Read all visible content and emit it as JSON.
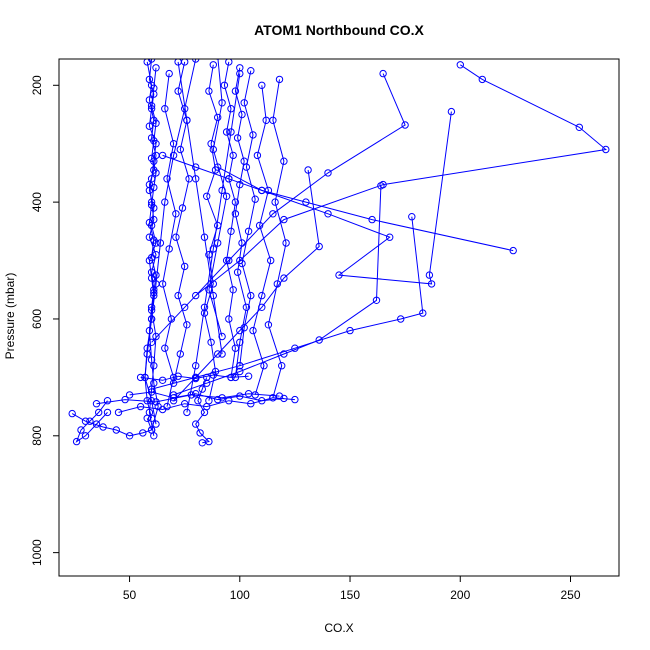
{
  "chart_data": {
    "type": "line",
    "title": "ATOM1 Northbound CO.X",
    "xlabel": "CO.X",
    "ylabel": "Pressure (mbar)",
    "xlim": [
      18,
      272
    ],
    "ylim": [
      1040,
      155
    ],
    "y_reversed": true,
    "x_ticks": [
      50,
      100,
      150,
      200,
      250
    ],
    "y_ticks": [
      200,
      400,
      600,
      800,
      1000
    ],
    "line_color": "#0000ff",
    "marker": "open-circle",
    "grid": false,
    "series": [
      {
        "x": [
          60,
          59,
          61,
          60,
          59,
          62,
          61,
          60,
          59,
          61,
          60,
          62,
          59,
          60,
          61,
          60,
          58,
          57,
          60,
          62
        ],
        "y": [
          155,
          190,
          215,
          240,
          270,
          300,
          330,
          360,
          380,
          410,
          440,
          470,
          500,
          530,
          560,
          600,
          650,
          700,
          740,
          780
        ]
      },
      {
        "x": [
          58,
          60,
          59,
          61,
          60,
          62,
          61,
          59,
          60,
          61,
          59,
          62,
          60,
          61,
          60,
          59,
          60,
          61,
          63,
          60
        ],
        "y": [
          160,
          200,
          225,
          260,
          290,
          320,
          345,
          370,
          400,
          430,
          460,
          490,
          520,
          550,
          580,
          620,
          670,
          710,
          750,
          790
        ]
      },
      {
        "x": [
          62,
          61,
          60,
          62,
          61,
          60,
          62,
          61,
          60,
          59,
          61,
          60,
          62,
          61,
          60,
          62,
          61,
          60,
          59,
          61
        ],
        "y": [
          170,
          205,
          235,
          265,
          295,
          325,
          350,
          375,
          405,
          435,
          465,
          495,
          525,
          555,
          585,
          630,
          680,
          720,
          760,
          800
        ]
      },
      {
        "x": [
          80,
          75,
          70,
          66,
          64,
          62,
          60,
          58,
          57,
          58,
          60
        ],
        "y": [
          155,
          240,
          320,
          400,
          470,
          540,
          600,
          660,
          700,
          740,
          770
        ]
      },
      {
        "x": [
          95,
          93,
          96,
          94,
          97,
          95,
          98,
          96,
          94,
          97,
          95,
          98,
          96
        ],
        "y": [
          160,
          200,
          240,
          280,
          320,
          360,
          400,
          450,
          500,
          550,
          600,
          650,
          700
        ]
      },
      {
        "x": [
          100,
          98,
          101,
          99,
          102,
          100,
          98,
          101,
          99,
          103,
          100,
          98
        ],
        "y": [
          170,
          210,
          250,
          290,
          330,
          370,
          420,
          470,
          520,
          580,
          640,
          700
        ]
      },
      {
        "x": [
          88,
          86,
          90,
          87,
          89,
          85,
          90,
          86,
          88,
          84,
          87,
          89,
          86
        ],
        "y": [
          165,
          210,
          255,
          300,
          345,
          390,
          440,
          490,
          540,
          590,
          640,
          690,
          740
        ]
      },
      {
        "x": [
          75,
          72,
          76,
          73,
          77,
          74,
          71,
          75,
          72,
          76,
          73,
          70
        ],
        "y": [
          160,
          210,
          260,
          310,
          360,
          410,
          460,
          510,
          560,
          610,
          660,
          710
        ]
      },
      {
        "x": [
          105,
          102,
          106,
          103,
          107,
          104,
          101,
          105,
          102,
          100
        ],
        "y": [
          175,
          230,
          285,
          340,
          395,
          450,
          505,
          560,
          615,
          680
        ]
      },
      {
        "x": [
          68,
          66,
          70,
          67,
          71,
          68,
          65,
          69,
          66,
          70,
          67
        ],
        "y": [
          180,
          240,
          300,
          360,
          420,
          480,
          540,
          600,
          650,
          700,
          750
        ]
      },
      {
        "x": [
          110,
          112,
          108,
          113,
          109,
          114,
          110,
          106,
          111,
          107
        ],
        "y": [
          200,
          260,
          320,
          380,
          440,
          500,
          560,
          620,
          680,
          730
        ]
      },
      {
        "x": [
          118,
          115,
          120,
          116,
          121,
          117,
          113,
          119,
          115
        ],
        "y": [
          190,
          260,
          330,
          400,
          470,
          540,
          610,
          680,
          735
        ]
      },
      {
        "x": [
          200,
          210,
          254,
          266,
          165,
          120,
          100,
          80
        ],
        "y": [
          165,
          190,
          272,
          310,
          370,
          430,
          500,
          560
        ]
      },
      {
        "x": [
          165,
          175,
          140,
          115,
          95,
          75,
          60
        ],
        "y": [
          180,
          268,
          350,
          420,
          500,
          580,
          640
        ]
      },
      {
        "x": [
          196,
          186,
          187,
          145,
          168,
          140,
          110,
          90
        ],
        "y": [
          245,
          525,
          540,
          525,
          460,
          420,
          380,
          340
        ]
      },
      {
        "x": [
          224,
          160,
          130,
          110,
          95,
          80,
          65
        ],
        "y": [
          483,
          430,
          400,
          380,
          360,
          340,
          320
        ]
      },
      {
        "x": [
          178,
          183,
          173,
          150,
          125,
          100,
          80,
          60
        ],
        "y": [
          425,
          590,
          600,
          620,
          650,
          680,
          700,
          720
        ]
      },
      {
        "x": [
          164,
          162,
          136,
          120,
          100,
          85,
          70
        ],
        "y": [
          372,
          568,
          636,
          660,
          690,
          710,
          730
        ]
      },
      {
        "x": [
          131,
          136,
          120,
          110,
          100,
          90,
          80,
          70
        ],
        "y": [
          345,
          476,
          530,
          580,
          620,
          660,
          700,
          740
        ]
      },
      {
        "x": [
          40,
          36,
          32,
          28,
          26,
          30,
          35,
          40
        ],
        "y": [
          740,
          760,
          775,
          790,
          810,
          800,
          780,
          760
        ]
      },
      {
        "x": [
          24,
          30,
          38,
          44,
          50,
          56,
          60,
          58
        ],
        "y": [
          762,
          775,
          785,
          790,
          800,
          795,
          790,
          770
        ]
      },
      {
        "x": [
          85,
          83,
          81,
          84,
          80,
          82,
          86,
          83
        ],
        "y": [
          700,
          720,
          740,
          760,
          780,
          795,
          810,
          812
        ]
      },
      {
        "x": [
          50,
          60,
          70,
          80,
          90,
          100,
          110,
          120
        ],
        "y": [
          730,
          725,
          735,
          728,
          738,
          732,
          740,
          736
        ]
      },
      {
        "x": [
          45,
          55,
          65,
          75,
          85,
          95,
          105,
          115,
          125
        ],
        "y": [
          760,
          750,
          755,
          745,
          750,
          740,
          745,
          735,
          738
        ]
      },
      {
        "x": [
          35,
          48,
          62,
          78,
          92,
          104,
          118
        ],
        "y": [
          745,
          738,
          742,
          730,
          735,
          728,
          732
        ]
      },
      {
        "x": [
          55,
          65,
          72,
          80,
          88,
          96,
          104
        ],
        "y": [
          700,
          705,
          698,
          702,
          696,
          700,
          698
        ]
      },
      {
        "x": [
          90,
          92,
          88,
          94,
          90,
          86,
          92
        ],
        "y": [
          150,
          230,
          310,
          390,
          470,
          550,
          630
        ]
      },
      {
        "x": [
          72,
          76,
          80,
          84,
          88,
          92
        ],
        "y": [
          160,
          260,
          360,
          460,
          560,
          660
        ]
      },
      {
        "x": [
          100,
          96,
          92,
          88,
          84,
          80,
          76
        ],
        "y": [
          180,
          280,
          380,
          480,
          580,
          680,
          760
        ]
      }
    ]
  }
}
